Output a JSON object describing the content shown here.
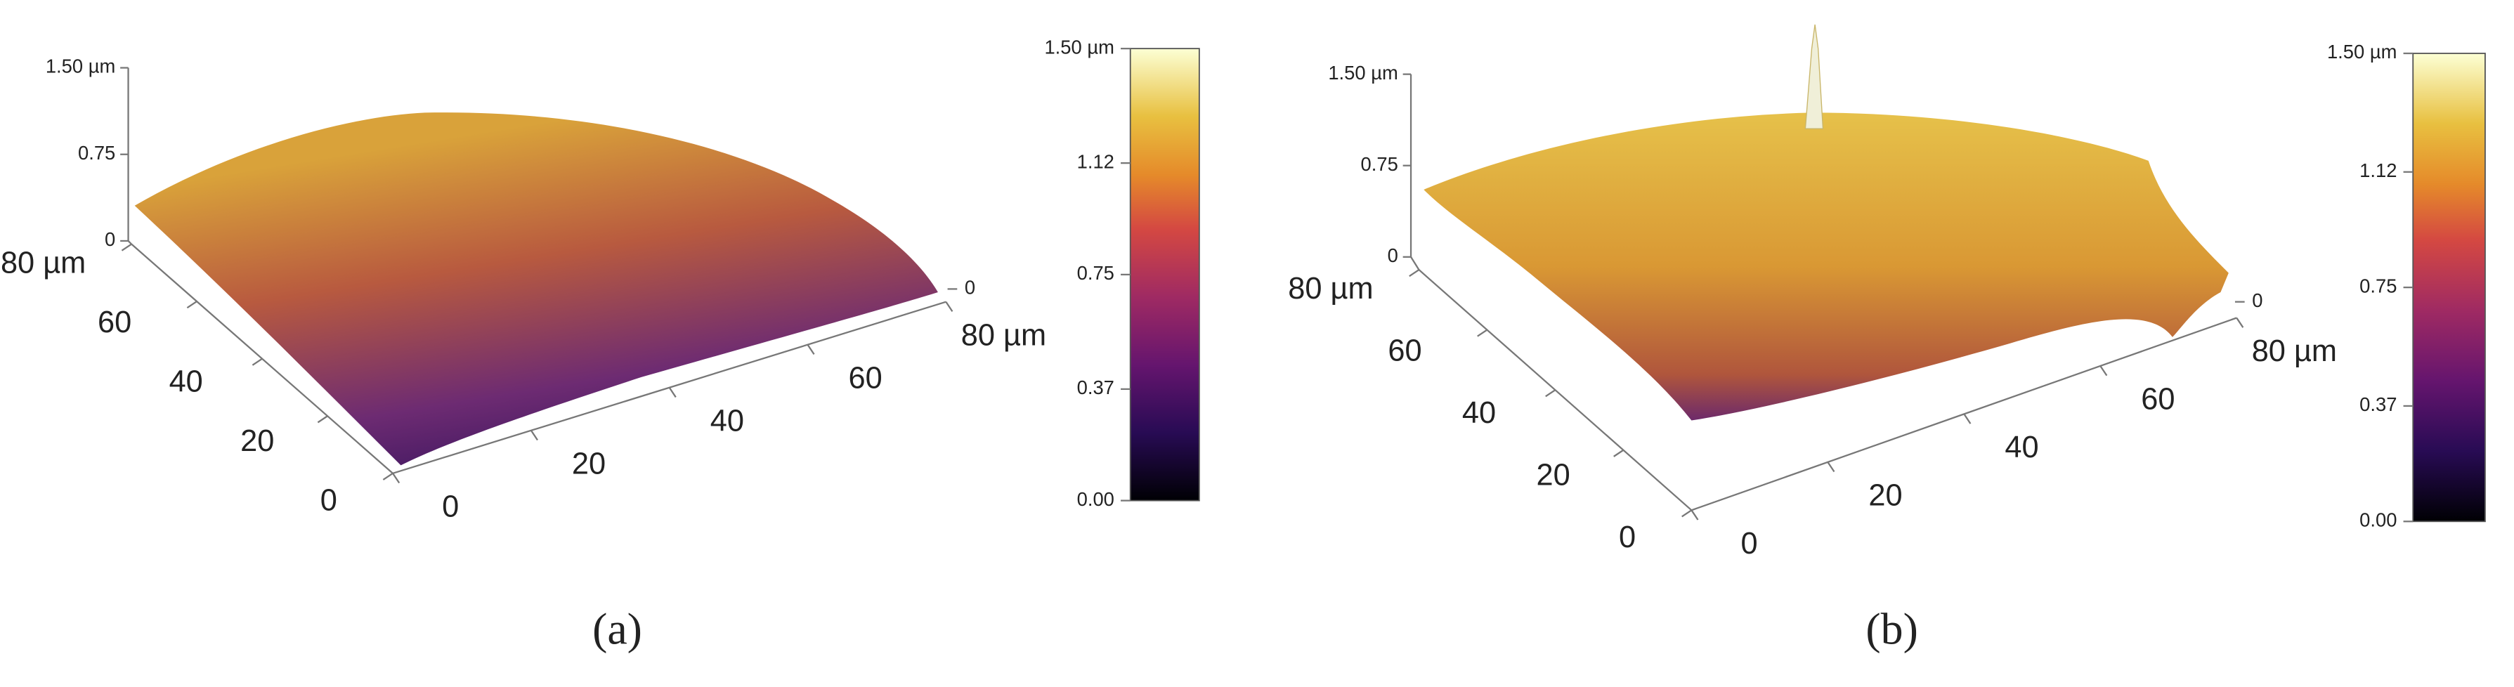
{
  "chart_data": [
    {
      "type": "surface",
      "caption": "(a)",
      "zlim": [
        0,
        1.5
      ],
      "zticks": [
        0,
        0.75,
        {
          "value": 1.5,
          "label": "1.50 µm"
        }
      ],
      "xlim": [
        0,
        80
      ],
      "xticks": [
        0,
        20,
        40,
        60,
        {
          "value": 80,
          "label": "80 µm"
        }
      ],
      "ylim": [
        0,
        80
      ],
      "yticks": [
        0,
        20,
        40,
        60,
        {
          "value": 80,
          "label": "80 µm"
        }
      ],
      "z2ticks": [
        0
      ],
      "colorbar": {
        "lim": [
          0,
          1.5
        ],
        "ticks": [
          {
            "value": 0,
            "label": "0.00"
          },
          0.37,
          0.75,
          1.12,
          {
            "value": 1.5,
            "label": "1.50 µm"
          }
        ]
      }
    },
    {
      "type": "surface",
      "caption": "(b)",
      "zlim": [
        0,
        1.5
      ],
      "zticks": [
        0,
        0.75,
        {
          "value": 1.5,
          "label": "1.50 µm"
        }
      ],
      "xlim": [
        0,
        80
      ],
      "xticks": [
        0,
        20,
        40,
        60,
        {
          "value": 80,
          "label": "80 µm"
        }
      ],
      "ylim": [
        0,
        80
      ],
      "yticks": [
        0,
        20,
        40,
        60,
        {
          "value": 80,
          "label": "80 µm"
        }
      ],
      "z2ticks": [
        0
      ],
      "colorbar": {
        "lim": [
          0,
          1.5
        ],
        "ticks": [
          {
            "value": 0,
            "label": "0.00"
          },
          0.37,
          0.75,
          1.12,
          {
            "value": 1.5,
            "label": "1.50 µm"
          }
        ]
      }
    }
  ]
}
